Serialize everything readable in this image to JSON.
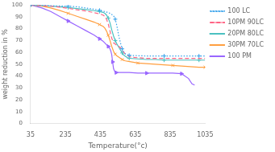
{
  "chart_data": {
    "type": "line",
    "xlabel": "Temperature(°c)",
    "ylabel": "weight reduction in %",
    "xlim": [
      35,
      1035
    ],
    "ylim": [
      0,
      100
    ],
    "xticks": [
      35,
      235,
      435,
      635,
      835,
      1035
    ],
    "yticks": [
      0,
      10,
      20,
      30,
      40,
      50,
      60,
      70,
      80,
      90,
      100
    ],
    "grid": false,
    "legend": "upper right",
    "series": [
      {
        "name": "100 LC",
        "line_style": "dotted",
        "marker": "+",
        "x": [
          35,
          100,
          150,
          200,
          250,
          300,
          350,
          400,
          430,
          460,
          490,
          510,
          520,
          530,
          540,
          550,
          560,
          570,
          580,
          590,
          600,
          650,
          700,
          750,
          800,
          850,
          900,
          950,
          1000,
          1035
        ],
        "values": [
          100,
          99.8,
          99.5,
          99.2,
          99.0,
          98.5,
          97.5,
          96.5,
          95.5,
          94.5,
          93,
          91,
          88,
          82,
          74,
          68,
          63,
          60,
          58.5,
          58,
          57.5,
          57.2,
          57,
          57,
          57,
          57,
          57,
          57,
          57,
          57
        ]
      },
      {
        "name": "10PM 90LC",
        "line_style": "dashed",
        "x": [
          35,
          100,
          150,
          200,
          250,
          300,
          350,
          400,
          430,
          450,
          460,
          470,
          480,
          490,
          500,
          510,
          520,
          530,
          540,
          550,
          560,
          575,
          590,
          600,
          610,
          650,
          700,
          750,
          800,
          850,
          900,
          950,
          1000,
          1035
        ],
        "values": [
          100,
          99.5,
          99.0,
          98.2,
          97.2,
          96.0,
          95.0,
          93.5,
          92.5,
          91.5,
          90.5,
          88,
          84,
          78,
          72,
          68,
          67,
          66,
          65,
          64,
          62,
          59,
          57.5,
          56.5,
          56,
          55.5,
          55,
          55,
          55,
          55,
          55,
          55,
          55,
          55
        ]
      },
      {
        "name": "20PM 80LC",
        "line_style": "solid",
        "marker": "+",
        "x": [
          35,
          100,
          150,
          200,
          250,
          300,
          350,
          400,
          430,
          450,
          460,
          470,
          480,
          490,
          500,
          510,
          520,
          530,
          540,
          550,
          560,
          570,
          580,
          590,
          600,
          650,
          700,
          750,
          800,
          850,
          900,
          950,
          1000,
          1035
        ],
        "values": [
          100,
          99.5,
          99.0,
          98.5,
          97.8,
          97.0,
          96.2,
          95.2,
          94.5,
          93.8,
          93.0,
          91.5,
          89,
          85,
          79,
          74,
          70,
          67,
          64.5,
          62,
          59.5,
          57.5,
          56.5,
          55.5,
          55,
          54.5,
          54,
          54,
          53.5,
          53.5,
          53.5,
          53.5,
          53.5,
          53.5
        ]
      },
      {
        "name": "30PM 70LC",
        "line_style": "solid",
        "marker": "x",
        "x": [
          35,
          100,
          150,
          200,
          250,
          300,
          350,
          400,
          430,
          450,
          460,
          470,
          480,
          490,
          500,
          510,
          520,
          530,
          540,
          550,
          560,
          575,
          590,
          610,
          650,
          700,
          750,
          800,
          850,
          900,
          950,
          1000,
          1035
        ],
        "values": [
          100,
          99.0,
          97.5,
          95.5,
          93.0,
          90.5,
          88.0,
          85.5,
          83.5,
          82.0,
          80.5,
          78.0,
          74.5,
          70.0,
          65.0,
          61.0,
          58.5,
          57.0,
          56.0,
          55.0,
          54.0,
          53.0,
          52.5,
          52.0,
          51.0,
          50.5,
          50.0,
          49.5,
          49.0,
          48.5,
          48.0,
          47.5,
          47.5
        ]
      },
      {
        "name": "100 PM",
        "line_style": "solid",
        "marker": ">",
        "x": [
          35,
          100,
          150,
          200,
          250,
          300,
          350,
          400,
          430,
          450,
          460,
          470,
          480,
          490,
          495,
          500,
          505,
          510,
          515,
          520,
          525,
          550,
          600,
          650,
          700,
          750,
          800,
          850,
          900,
          940,
          960,
          975
        ],
        "values": [
          100,
          97.5,
          94.5,
          90.5,
          86.5,
          82.5,
          78.5,
          74.5,
          71.5,
          69.5,
          68.0,
          66.5,
          65.0,
          63.0,
          61.0,
          58.0,
          52.0,
          46.5,
          44.5,
          43.5,
          43.0,
          43.0,
          43.0,
          42.5,
          42.5,
          42.5,
          42.5,
          42.5,
          42.0,
          38.0,
          33.5,
          32.5
        ]
      }
    ]
  }
}
